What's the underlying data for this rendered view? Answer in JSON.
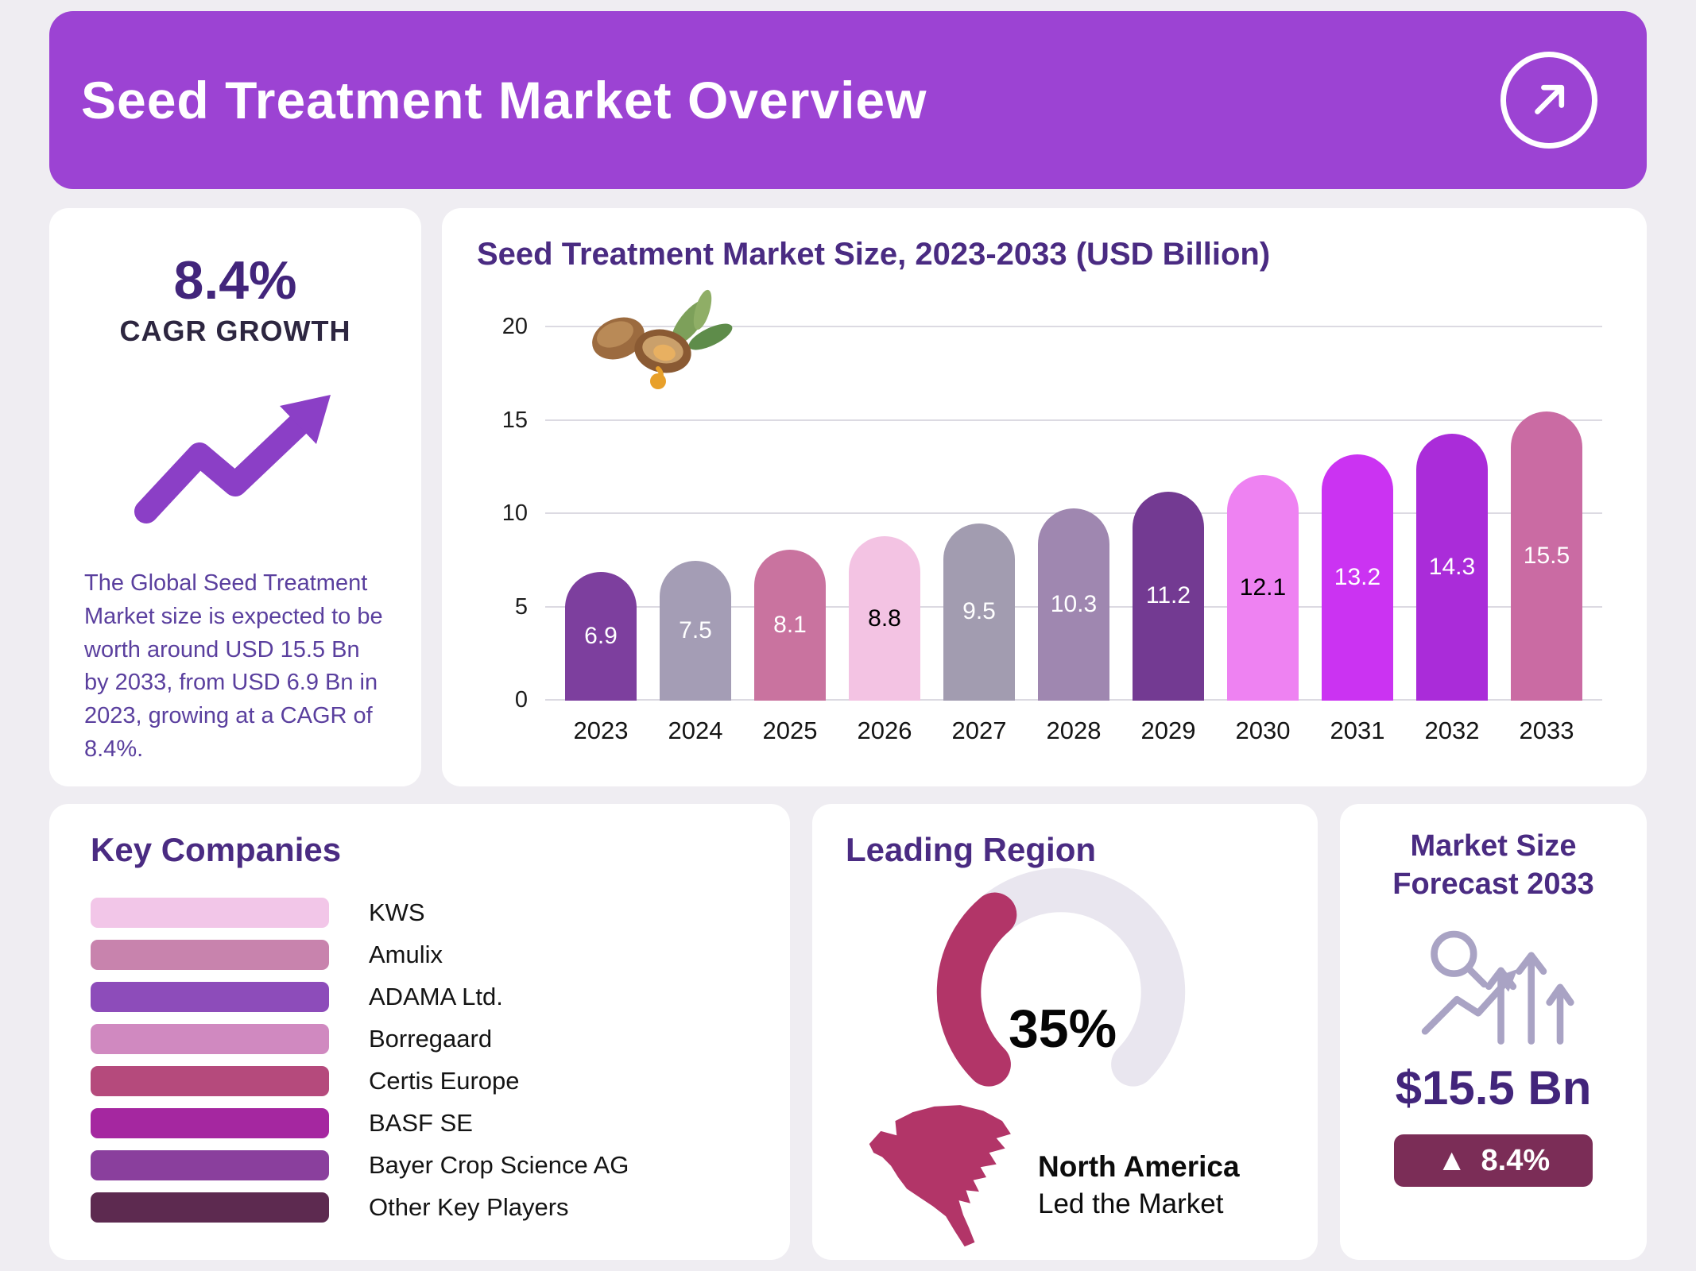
{
  "theme": {
    "page_bg": "#efedf2",
    "card_bg": "#ffffff",
    "header_bg": "#9c43d3",
    "heading_color": "#4a2b82",
    "value_color": "#42257b",
    "body_text_color": "#5a3f9e",
    "accent_color": "#8b3fc6",
    "gauge_fill": "#b23568",
    "gauge_track": "#e9e6ef",
    "map_color": "#b23568",
    "badge_bg": "#7b2d57",
    "icon_color": "#a9a3c4",
    "grid_color": "#dcdae2",
    "axis_text_color": "#1c1c1c"
  },
  "header": {
    "title": "Seed Treatment Market Overview"
  },
  "cagr_card": {
    "value": "8.4%",
    "label": "CAGR GROWTH",
    "description": "The Global Seed Treatment Market size is expected to be worth around USD 15.5 Bn by 2033, from USD 6.9 Bn in 2023, growing at a CAGR of 8.4%."
  },
  "chart_data": {
    "type": "bar",
    "title": "Seed Treatment Market Size, 2023-2033 (USD Billion)",
    "categories": [
      "2023",
      "2024",
      "2025",
      "2026",
      "2027",
      "2028",
      "2029",
      "2030",
      "2031",
      "2032",
      "2033"
    ],
    "values": [
      6.9,
      7.5,
      8.1,
      8.8,
      9.5,
      10.3,
      11.2,
      12.1,
      13.2,
      14.3,
      15.5
    ],
    "ylim": [
      0,
      20
    ],
    "yticks": [
      0,
      5,
      10,
      15,
      20
    ],
    "bar_colors": [
      "#7d3f9e",
      "#a49db5",
      "#c9739f",
      "#f3c3e3",
      "#a29cb0",
      "#9f87b0",
      "#733a92",
      "#ee82f2",
      "#cb33f2",
      "#aa2cd9",
      "#ca6ba3"
    ],
    "label_colors": [
      "#ffffff",
      "#ffffff",
      "#ffffff",
      "#000000",
      "#ffffff",
      "#ffffff",
      "#ffffff",
      "#000000",
      "#ffffff",
      "#ffffff",
      "#ffffff"
    ],
    "grid": true,
    "legend": false,
    "xlabel": "",
    "ylabel": ""
  },
  "key_companies": {
    "title": "Key Companies",
    "items": [
      {
        "label": "KWS",
        "color": "#f2c6e8"
      },
      {
        "label": "Amulix",
        "color": "#c883ad"
      },
      {
        "label": "ADAMA Ltd.",
        "color": "#8d4cba"
      },
      {
        "label": "Borregaard",
        "color": "#d089c0"
      },
      {
        "label": "Certis Europe",
        "color": "#b54a7c"
      },
      {
        "label": "BASF SE",
        "color": "#a527a0"
      },
      {
        "label": "Bayer Crop Science AG",
        "color": "#8a3f9d"
      },
      {
        "label": "Other Key Players",
        "color": "#5d2a50"
      }
    ]
  },
  "leading_region": {
    "title": "Leading Region",
    "percent": "35%",
    "percent_value": 35,
    "region_name": "North America",
    "region_caption": "Led the Market"
  },
  "forecast_card": {
    "title_line1": "Market Size",
    "title_line2": "Forecast 2033",
    "value": "$15.5 Bn",
    "badge_icon": "▲",
    "badge_label": "8.4%"
  }
}
